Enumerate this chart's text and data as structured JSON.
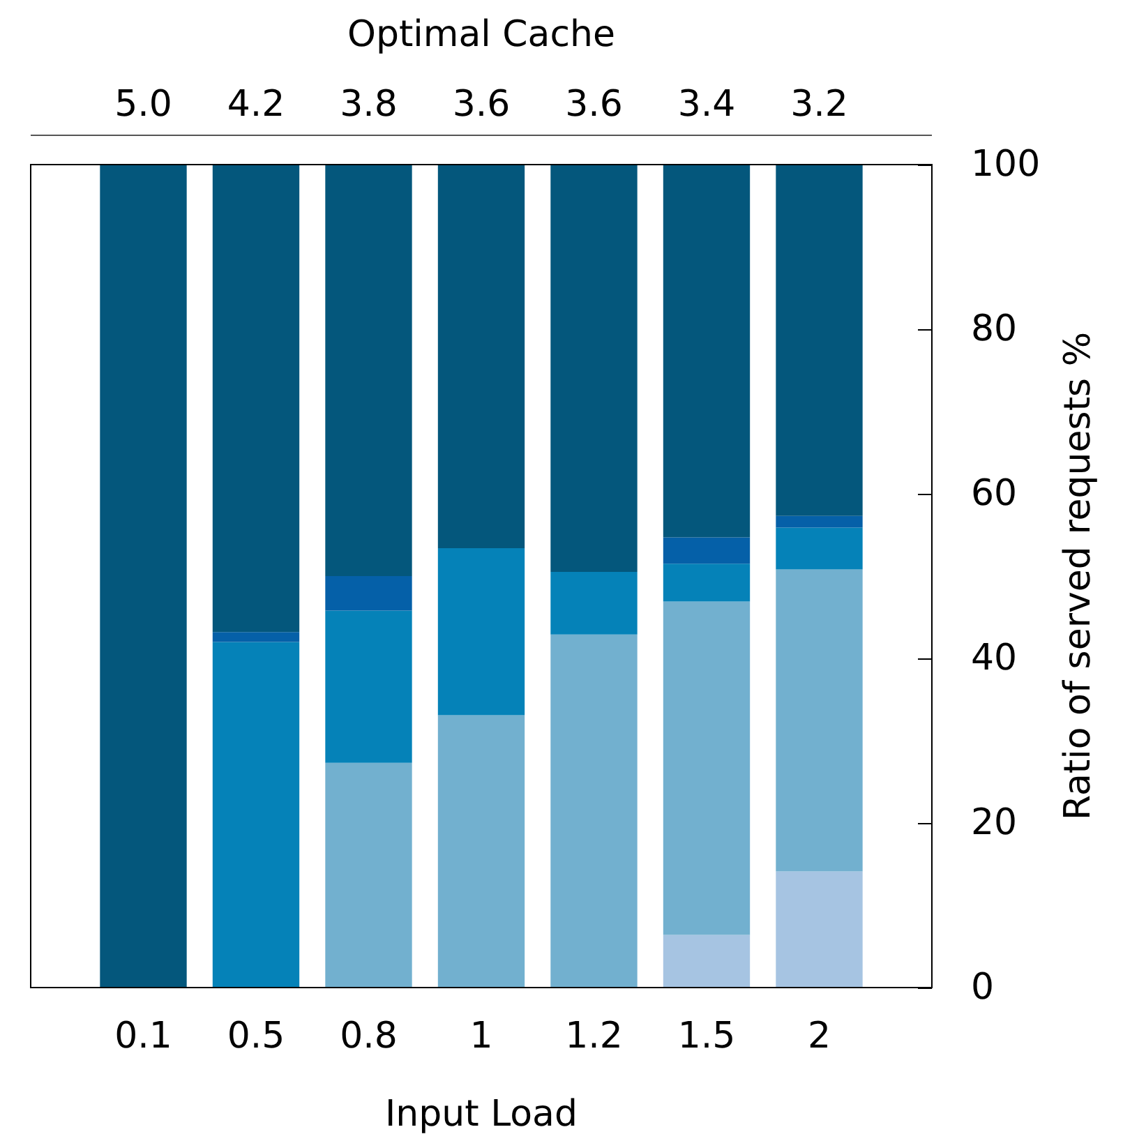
{
  "chart_data": {
    "type": "bar",
    "stacked": true,
    "x2label": "Optimal Cache",
    "xlabel": "Input Load",
    "ylabel": "Ratio of served requests %",
    "categories": [
      "0.1",
      "0.5",
      "0.8",
      "1",
      "1.2",
      "1.5",
      "2"
    ],
    "series": [
      {
        "color": "#a6c4e2",
        "values": [
          0,
          0,
          0,
          0,
          0,
          6.4,
          14.1
        ]
      },
      {
        "color": "#72b0cf",
        "values": [
          0,
          0,
          27.3,
          33.1,
          42.9,
          40.5,
          36.7
        ]
      },
      {
        "color": "#0582b8",
        "values": [
          0,
          42.0,
          18.5,
          20.3,
          7.6,
          4.6,
          5.1
        ]
      },
      {
        "color": "#0560a8",
        "values": [
          0,
          1.2,
          4.2,
          0,
          0,
          3.2,
          1.4
        ]
      },
      {
        "color": "#04577c",
        "values": [
          100,
          56.8,
          50,
          46.6,
          49.5,
          45.3,
          42.7
        ]
      }
    ],
    "annotations": [
      "5.0",
      "4.2",
      "3.8",
      "3.6",
      "3.6",
      "3.4",
      "3.2"
    ],
    "ylim": [
      0,
      100
    ],
    "yticks": [
      0,
      20,
      40,
      60,
      80,
      100
    ],
    "grid": false
  }
}
